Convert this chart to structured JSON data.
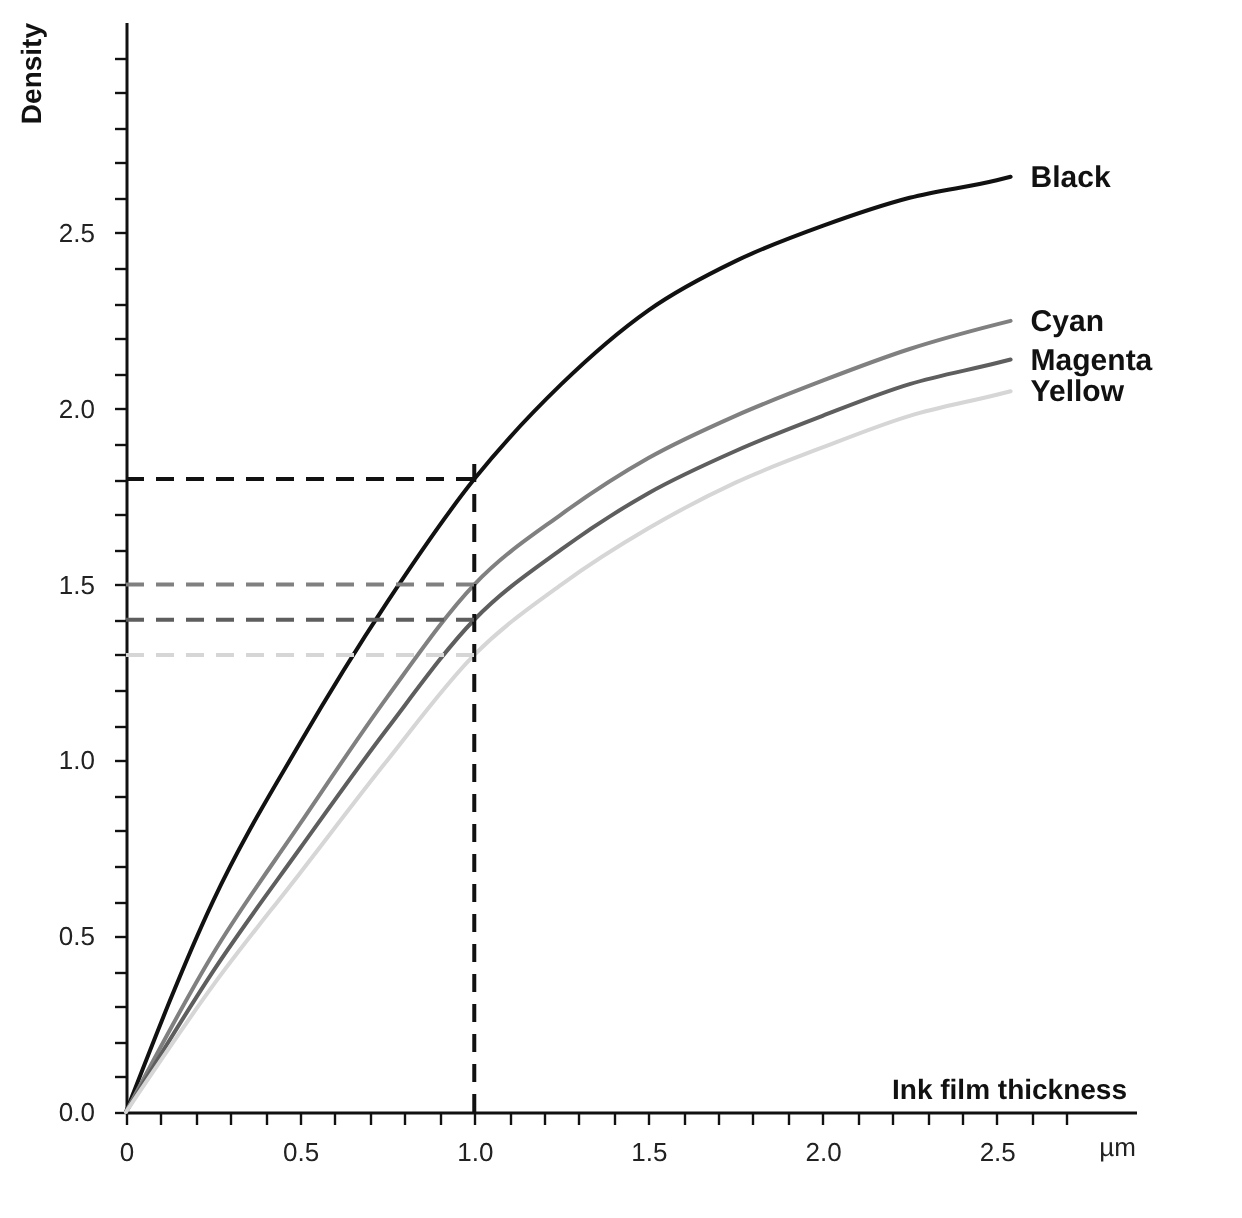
{
  "chart_data": {
    "type": "line",
    "xlabel": "Ink film thickness",
    "ylabel": "Density",
    "annotations": [
      "µm"
    ],
    "xlim": [
      0,
      2.9
    ],
    "ylim": [
      0,
      3.1
    ],
    "xticks": [
      {
        "value": 0,
        "label": "0"
      },
      {
        "value": 0.1,
        "label": null
      },
      {
        "value": 0.2,
        "label": null
      },
      {
        "value": 0.3,
        "label": null
      },
      {
        "value": 0.4,
        "label": null
      },
      {
        "value": 0.5,
        "label": "0.5"
      },
      {
        "value": 0.6,
        "label": null
      },
      {
        "value": 0.7,
        "label": null
      },
      {
        "value": 0.8,
        "label": null
      },
      {
        "value": 0.9,
        "label": null
      },
      {
        "value": 1,
        "label": "1.0"
      },
      {
        "value": 1.1,
        "label": null
      },
      {
        "value": 1.2,
        "label": null
      },
      {
        "value": 1.3,
        "label": null
      },
      {
        "value": 1.4,
        "label": null
      },
      {
        "value": 1.5,
        "label": "1.5"
      },
      {
        "value": 1.6,
        "label": null
      },
      {
        "value": 1.7,
        "label": null
      },
      {
        "value": 1.8,
        "label": null
      },
      {
        "value": 1.9,
        "label": null
      },
      {
        "value": 2,
        "label": "2.0"
      },
      {
        "value": 2.1,
        "label": null
      },
      {
        "value": 2.2,
        "label": null
      },
      {
        "value": 2.3,
        "label": null
      },
      {
        "value": 2.4,
        "label": null
      },
      {
        "value": 2.5,
        "label": "2.5"
      },
      {
        "value": 2.6,
        "label": null
      },
      {
        "value": 2.7,
        "label": null
      }
    ],
    "yticks": [
      {
        "value": 0,
        "label": "0.0"
      },
      {
        "value": 0.1,
        "label": null
      },
      {
        "value": 0.2,
        "label": null
      },
      {
        "value": 0.3,
        "label": null
      },
      {
        "value": 0.4,
        "label": null
      },
      {
        "value": 0.5,
        "label": "0.5"
      },
      {
        "value": 0.6,
        "label": null
      },
      {
        "value": 0.7,
        "label": null
      },
      {
        "value": 0.8,
        "label": null
      },
      {
        "value": 0.9,
        "label": null
      },
      {
        "value": 1,
        "label": "1.0"
      },
      {
        "value": 1.1,
        "label": null
      },
      {
        "value": 1.2,
        "label": null
      },
      {
        "value": 1.3,
        "label": null
      },
      {
        "value": 1.4,
        "label": null
      },
      {
        "value": 1.5,
        "label": "1.5"
      },
      {
        "value": 1.6,
        "label": null
      },
      {
        "value": 1.7,
        "label": null
      },
      {
        "value": 1.8,
        "label": null
      },
      {
        "value": 1.9,
        "label": null
      },
      {
        "value": 2,
        "label": "2.0"
      },
      {
        "value": 2.1,
        "label": null
      },
      {
        "value": 2.2,
        "label": null
      },
      {
        "value": 2.3,
        "label": null
      },
      {
        "value": 2.4,
        "label": null
      },
      {
        "value": 2.5,
        "label": "2.5"
      },
      {
        "value": 2.6,
        "label": null
      },
      {
        "value": 2.7,
        "label": null
      },
      {
        "value": 2.8,
        "label": null
      },
      {
        "value": 2.9,
        "label": null
      },
      {
        "value": 3,
        "label": null
      }
    ],
    "x": [
      0,
      0.25,
      0.5,
      0.75,
      1,
      1.25,
      1.5,
      1.75,
      2,
      2.25,
      2.5,
      2.54
    ],
    "grid": false,
    "marker": "none",
    "line_style": "solid",
    "series": [
      {
        "name": "Black",
        "color": "#111111",
        "values": [
          0,
          0.6,
          1.05,
          1.45,
          1.8,
          2.07,
          2.28,
          2.42,
          2.52,
          2.6,
          2.65,
          2.66
        ]
      },
      {
        "name": "Cyan",
        "color": "#808080",
        "values": [
          0,
          0.45,
          0.82,
          1.18,
          1.5,
          1.7,
          1.86,
          1.98,
          2.08,
          2.17,
          2.24,
          2.25
        ]
      },
      {
        "name": "Magenta",
        "color": "#5e5e5e",
        "values": [
          0,
          0.4,
          0.75,
          1.09,
          1.4,
          1.6,
          1.76,
          1.88,
          1.98,
          2.07,
          2.13,
          2.14
        ]
      },
      {
        "name": "Yellow",
        "color": "#d6d6d6",
        "values": [
          0,
          0.36,
          0.68,
          1,
          1.3,
          1.5,
          1.66,
          1.79,
          1.89,
          1.98,
          2.04,
          2.05
        ]
      }
    ],
    "ref_lines": [
      {
        "axis": "x",
        "value": 1,
        "label": null,
        "color": "#111111",
        "line_style": "dashed"
      },
      {
        "axis": "y",
        "value": 1.8,
        "label": null,
        "color": "#111111",
        "line_style": "dashed"
      },
      {
        "axis": "y",
        "value": 1.5,
        "label": null,
        "color": "#808080",
        "line_style": "dashed"
      },
      {
        "axis": "y",
        "value": 1.4,
        "label": null,
        "color": "#5e5e5e",
        "line_style": "dashed"
      },
      {
        "axis": "y",
        "value": 1.3,
        "label": null,
        "color": "#d6d6d6",
        "line_style": "dashed"
      }
    ]
  }
}
